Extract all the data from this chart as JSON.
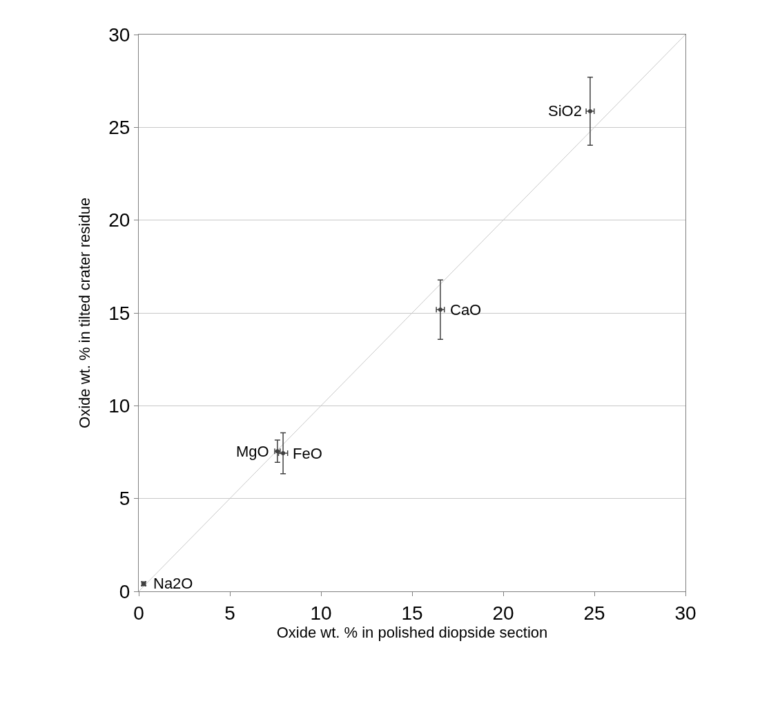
{
  "chart_data": {
    "type": "scatter",
    "xlabel": "Oxide wt. % in polished diopside section",
    "ylabel": "Oxide wt. % in tilted crater residue",
    "xlim": [
      0,
      30
    ],
    "ylim": [
      0,
      30
    ],
    "xticks": [
      0,
      5,
      10,
      15,
      20,
      25,
      30
    ],
    "yticks": [
      0,
      5,
      10,
      15,
      20,
      25,
      30
    ],
    "grid": "y",
    "marker": "none",
    "series": [
      {
        "color": "#404040",
        "x": [
          24.77,
          16.55,
          7.92,
          7.61,
          0.27
        ],
        "values": [
          25.87,
          15.18,
          7.44,
          7.55,
          0.41
        ],
        "errors": [
          1.83,
          1.6,
          1.1,
          0.6,
          0.1
        ],
        "xerrors": [
          0.22,
          0.22,
          0.25,
          0.15,
          0.1
        ]
      },
      {
        "type": "line",
        "color": "#c8c8c8",
        "x": [
          0,
          30
        ],
        "values": [
          0,
          30
        ]
      }
    ],
    "annotations": [
      {
        "text": "SiO2",
        "x": 24.77,
        "y": 25.87
      },
      {
        "text": "CaO",
        "x": 16.55,
        "y": 15.18
      },
      {
        "text": "FeO",
        "x": 7.92,
        "y": 7.44
      },
      {
        "text": "MgO",
        "x": 7.61,
        "y": 7.55
      },
      {
        "text": "Na2O",
        "x": 0.27,
        "y": 0.41
      }
    ]
  }
}
